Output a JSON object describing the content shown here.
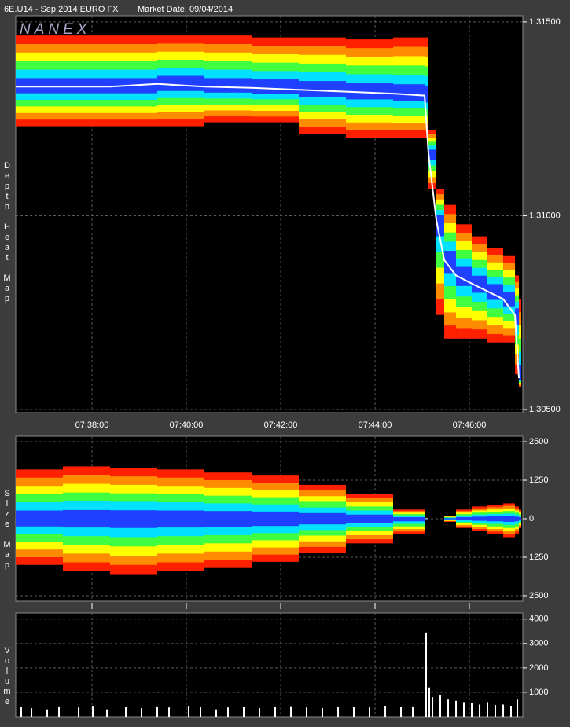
{
  "title": "6E.U14 - Sep 2014 EURO FX",
  "market_date": "Market Date: 09/04/2014",
  "logo": "NANEX",
  "chart_data": [
    {
      "type": "heatmap",
      "ylabel": "Depth Heat Map",
      "grid": true,
      "colors": [
        "#ff2000",
        "#ff8c00",
        "#ffff00",
        "#40ff40",
        "#00e0ff",
        "#2040ff"
      ],
      "price_color": "#ffffff",
      "xlim": [
        456.383,
        467.133
      ],
      "xticks": [
        {
          "value": 458,
          "label": "07:38:00"
        },
        {
          "value": 460,
          "label": "07:40:00"
        },
        {
          "value": 462,
          "label": "07:42:00"
        },
        {
          "value": 464,
          "label": "07:44:00"
        },
        {
          "value": 466,
          "label": "07:46:00"
        }
      ],
      "ylim": [
        1.30492,
        1.31516
      ],
      "yticks": [
        {
          "value": 1.315,
          "label": "1.31500"
        },
        {
          "value": 1.31,
          "label": "1.31000"
        },
        {
          "value": 1.305,
          "label": "1.30500"
        }
      ],
      "x": [
        456.383,
        457.383,
        458.383,
        459.383,
        460.383,
        461.383,
        462.383,
        463.383,
        464.383,
        465.05,
        465.133,
        465.3,
        465.467,
        465.717,
        466.05,
        466.383,
        466.717,
        466.967,
        467.05
      ],
      "high": [
        1.31465,
        1.31465,
        1.31465,
        1.31465,
        1.31465,
        1.3146,
        1.3146,
        1.31455,
        1.3146,
        1.3146,
        1.31222,
        1.31069,
        1.31028,
        1.30978,
        1.30947,
        1.30917,
        1.30896,
        1.30846,
        1.30785
      ],
      "low": [
        1.31231,
        1.31231,
        1.31231,
        1.31231,
        1.31241,
        1.31241,
        1.31211,
        1.31201,
        1.31201,
        1.31201,
        1.31069,
        1.30744,
        1.30683,
        1.30683,
        1.30683,
        1.30673,
        1.30673,
        1.30591,
        1.30557
      ],
      "price": [
        1.31333,
        1.31333,
        1.31333,
        1.3134,
        1.31333,
        1.3133,
        1.31325,
        1.3132,
        1.31315,
        1.3131,
        1.3116,
        1.30988,
        1.30886,
        1.30846,
        1.30825,
        1.30805,
        1.30785,
        1.30744,
        1.30581
      ]
    },
    {
      "type": "sizemap",
      "ylabel": "Size Map",
      "grid": true,
      "colors": [
        "#ff2000",
        "#ff8c00",
        "#ffff00",
        "#40ff40",
        "#00e0ff",
        "#2040ff"
      ],
      "ylim": [
        -2680,
        2680
      ],
      "yticks": [
        2500,
        1250,
        0,
        {
          "value": -1250,
          "label": "1250"
        },
        {
          "value": -2500,
          "label": "2500"
        }
      ],
      "x": [
        456.383,
        457.383,
        458.383,
        459.383,
        460.383,
        461.383,
        462.383,
        463.383,
        464.383,
        465.05,
        465.133,
        465.3,
        465.467,
        465.717,
        466.05,
        466.383,
        466.717,
        466.967,
        467.05
      ],
      "upper": [
        1600,
        1700,
        1650,
        1600,
        1500,
        1400,
        1100,
        800,
        300,
        30,
        null,
        null,
        100,
        300,
        400,
        450,
        500,
        400,
        300
      ],
      "lower": [
        -1500,
        -1700,
        -1800,
        -1700,
        -1600,
        -1400,
        -1100,
        -800,
        -500,
        -30,
        null,
        null,
        -100,
        -300,
        -400,
        -500,
        -600,
        -500,
        -300
      ]
    },
    {
      "type": "bar",
      "ylabel": "Volume",
      "grid": true,
      "color": "#ffffff",
      "ylim": [
        0,
        4250
      ],
      "yticks": [
        4000,
        3000,
        2000,
        1000
      ],
      "x": [
        456.5,
        456.717,
        457.05,
        457.3,
        457.717,
        458.017,
        458.317,
        458.717,
        459.05,
        459.383,
        459.633,
        460.05,
        460.3,
        460.633,
        460.883,
        461.217,
        461.55,
        461.883,
        462.217,
        462.55,
        462.883,
        463.217,
        463.55,
        463.883,
        464.217,
        464.55,
        464.8,
        465.083,
        465.15,
        465.217,
        465.383,
        465.55,
        465.717,
        465.883,
        466.05,
        466.217,
        466.383,
        466.55,
        466.717,
        466.883,
        467.017
      ],
      "values": [
        400,
        350,
        300,
        420,
        380,
        450,
        300,
        400,
        350,
        420,
        380,
        450,
        400,
        300,
        380,
        420,
        350,
        400,
        430,
        380,
        350,
        420,
        400,
        380,
        450,
        400,
        420,
        3450,
        1200,
        800,
        900,
        700,
        650,
        600,
        550,
        500,
        600,
        480,
        500,
        450,
        700
      ]
    }
  ]
}
